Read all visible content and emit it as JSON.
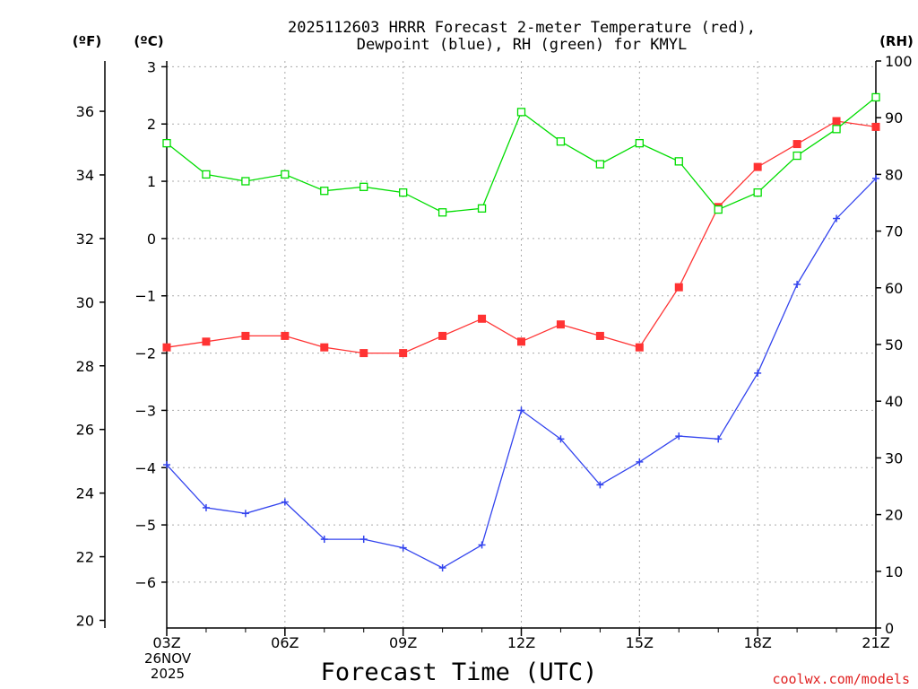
{
  "chart_data": {
    "type": "line",
    "title_line1": "2025112603 HRRR Forecast 2-meter Temperature (red),",
    "title_line2": "Dewpoint (blue), RH (green) for KMYL",
    "xlabel": "Forecast Time (UTC)",
    "unit_left_f": "(ºF)",
    "unit_left_c": "(ºC)",
    "unit_right": "(RH)",
    "date_label_1": "26NOV",
    "date_label_2": "2025",
    "credit": "coolwx.com/models",
    "x_hours": [
      3,
      4,
      5,
      6,
      7,
      8,
      9,
      10,
      11,
      12,
      13,
      14,
      15,
      16,
      17,
      18,
      19,
      20,
      21
    ],
    "x_range": [
      3,
      21
    ],
    "x_ticks": [
      {
        "hour": 3,
        "label": "03Z"
      },
      {
        "hour": 6,
        "label": "06Z"
      },
      {
        "hour": 9,
        "label": "09Z"
      },
      {
        "hour": 12,
        "label": "12Z"
      },
      {
        "hour": 15,
        "label": "15Z"
      },
      {
        "hour": 18,
        "label": "18Z"
      },
      {
        "hour": 21,
        "label": "21Z"
      }
    ],
    "c_range": [
      -6.8,
      3.1
    ],
    "c_ticks": [
      -6,
      -5,
      -4,
      -3,
      -2,
      -1,
      0,
      1,
      2,
      3
    ],
    "f_ticks": [
      20,
      22,
      24,
      26,
      28,
      30,
      32,
      34,
      36
    ],
    "rh_range": [
      0,
      100
    ],
    "rh_ticks": [
      0,
      10,
      20,
      30,
      40,
      50,
      60,
      70,
      80,
      90,
      100
    ],
    "series": [
      {
        "name": "Temperature",
        "axis": "C",
        "color": "#ff3333",
        "marker": "filled-square",
        "values": [
          -1.9,
          -1.8,
          -1.7,
          -1.7,
          -1.9,
          -2.0,
          -2.0,
          -1.7,
          -1.4,
          -1.8,
          -1.5,
          -1.7,
          -1.9,
          -0.85,
          0.55,
          1.25,
          1.65,
          2.05,
          1.95
        ]
      },
      {
        "name": "Dewpoint",
        "axis": "C",
        "color": "#3344ee",
        "marker": "plus",
        "values": [
          -3.95,
          -4.7,
          -4.8,
          -4.6,
          -5.25,
          -5.25,
          -5.4,
          -5.75,
          -5.35,
          -3.0,
          -3.5,
          -4.3,
          -3.9,
          -3.45,
          -3.5,
          -2.35,
          -0.8,
          0.35,
          1.05
        ]
      },
      {
        "name": "RH",
        "axis": "RH",
        "color": "#00dd00",
        "marker": "open-square",
        "values": [
          85.5,
          80,
          78.8,
          80,
          77.1,
          77.8,
          76.8,
          73.3,
          74,
          91,
          85.8,
          81.8,
          85.5,
          82.3,
          73.8,
          76.8,
          83.3,
          88,
          93.6
        ]
      }
    ]
  }
}
